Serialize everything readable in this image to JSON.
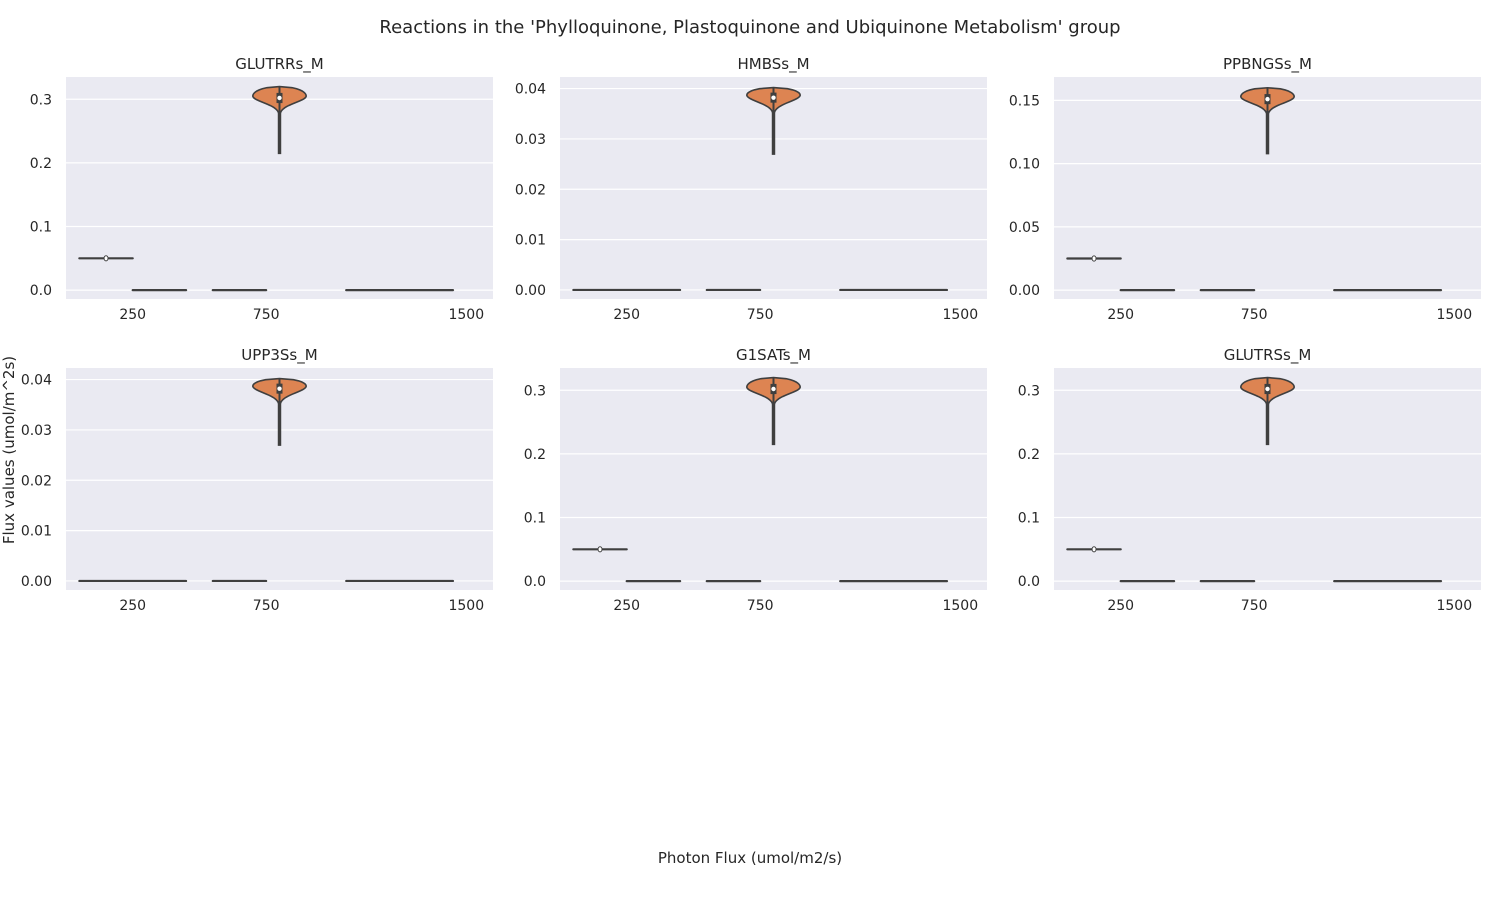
{
  "figure": {
    "title": "Reactions in the 'Phylloquinone, Plastoquinone and Ubiquinone Metabolism' group",
    "xlabel": "Photon Flux (umol/m2/s)",
    "ylabel": "Flux values (umol/m^2s)",
    "background": "#eaeaf2",
    "grid_color": "#ffffff",
    "violin_fill": "#dd8452",
    "line_color": "#3f3f3f"
  },
  "chart_data": [
    {
      "type": "violin",
      "title": "GLUTRRs_M",
      "xlim": [
        0,
        1600
      ],
      "xticks": [
        250,
        750,
        1500
      ],
      "ylim": [
        -0.014,
        0.335
      ],
      "yticks": [
        0.0,
        0.1,
        0.2,
        0.3
      ],
      "ytick_labels": [
        "0.0",
        "0.1",
        "0.2",
        "0.3"
      ],
      "flat_segments": [
        {
          "from": 50,
          "to": 250,
          "value": 0.05,
          "has_median": true
        },
        {
          "from": 250,
          "to": 450,
          "value": 0.0
        },
        {
          "from": 550,
          "to": 750,
          "value": 0.0
        },
        {
          "from": 1050,
          "to": 1450,
          "value": 0.0
        }
      ],
      "violins": [
        {
          "x": 800,
          "min": 0.215,
          "max": 0.32,
          "median": 0.302,
          "q1": 0.294,
          "q3": 0.31,
          "mode": 0.305,
          "half_width": 100
        }
      ]
    },
    {
      "type": "violin",
      "title": "HMBSs_M",
      "xlim": [
        0,
        1600
      ],
      "xticks": [
        250,
        750,
        1500
      ],
      "ylim": [
        -0.0018,
        0.0423
      ],
      "yticks": [
        0.0,
        0.01,
        0.02,
        0.03,
        0.04
      ],
      "ytick_labels": [
        "0.00",
        "0.01",
        "0.02",
        "0.03",
        "0.04"
      ],
      "flat_segments": [
        {
          "from": 50,
          "to": 450,
          "value": 0.0
        },
        {
          "from": 550,
          "to": 750,
          "value": 0.0
        },
        {
          "from": 1050,
          "to": 1450,
          "value": 0.0
        }
      ],
      "violins": [
        {
          "x": 800,
          "min": 0.027,
          "max": 0.0402,
          "median": 0.0382,
          "q1": 0.0372,
          "q3": 0.0392,
          "mode": 0.0387,
          "half_width": 100
        }
      ]
    },
    {
      "type": "violin",
      "title": "PPBNGSs_M",
      "xlim": [
        0,
        1600
      ],
      "xticks": [
        250,
        750,
        1500
      ],
      "ylim": [
        -0.007,
        0.1685
      ],
      "yticks": [
        0.0,
        0.05,
        0.1,
        0.15
      ],
      "ytick_labels": [
        "0.00",
        "0.05",
        "0.10",
        "0.15"
      ],
      "flat_segments": [
        {
          "from": 50,
          "to": 250,
          "value": 0.025,
          "has_median": true
        },
        {
          "from": 250,
          "to": 450,
          "value": 0.0
        },
        {
          "from": 550,
          "to": 750,
          "value": 0.0
        },
        {
          "from": 1050,
          "to": 1450,
          "value": 0.0
        }
      ],
      "violins": [
        {
          "x": 800,
          "min": 0.108,
          "max": 0.16,
          "median": 0.151,
          "q1": 0.147,
          "q3": 0.155,
          "mode": 0.153,
          "half_width": 100
        }
      ]
    },
    {
      "type": "violin",
      "title": "UPP3Ss_M",
      "xlim": [
        0,
        1600
      ],
      "xticks": [
        250,
        750,
        1500
      ],
      "ylim": [
        -0.0018,
        0.0423
      ],
      "yticks": [
        0.0,
        0.01,
        0.02,
        0.03,
        0.04
      ],
      "ytick_labels": [
        "0.00",
        "0.01",
        "0.02",
        "0.03",
        "0.04"
      ],
      "flat_segments": [
        {
          "from": 50,
          "to": 450,
          "value": 0.0
        },
        {
          "from": 550,
          "to": 750,
          "value": 0.0
        },
        {
          "from": 1050,
          "to": 1450,
          "value": 0.0
        }
      ],
      "violins": [
        {
          "x": 800,
          "min": 0.027,
          "max": 0.0402,
          "median": 0.0382,
          "q1": 0.0372,
          "q3": 0.0392,
          "mode": 0.0387,
          "half_width": 100
        }
      ]
    },
    {
      "type": "violin",
      "title": "G1SATs_M",
      "xlim": [
        0,
        1600
      ],
      "xticks": [
        250,
        750,
        1500
      ],
      "ylim": [
        -0.014,
        0.335
      ],
      "yticks": [
        0.0,
        0.1,
        0.2,
        0.3
      ],
      "ytick_labels": [
        "0.0",
        "0.1",
        "0.2",
        "0.3"
      ],
      "flat_segments": [
        {
          "from": 50,
          "to": 250,
          "value": 0.05,
          "has_median": true
        },
        {
          "from": 250,
          "to": 450,
          "value": 0.0
        },
        {
          "from": 550,
          "to": 750,
          "value": 0.0
        },
        {
          "from": 1050,
          "to": 1450,
          "value": 0.0
        }
      ],
      "violins": [
        {
          "x": 800,
          "min": 0.215,
          "max": 0.32,
          "median": 0.302,
          "q1": 0.294,
          "q3": 0.31,
          "mode": 0.305,
          "half_width": 100
        }
      ]
    },
    {
      "type": "violin",
      "title": "GLUTRSs_M",
      "xlim": [
        0,
        1600
      ],
      "xticks": [
        250,
        750,
        1500
      ],
      "ylim": [
        -0.014,
        0.335
      ],
      "yticks": [
        0.0,
        0.1,
        0.2,
        0.3
      ],
      "ytick_labels": [
        "0.0",
        "0.1",
        "0.2",
        "0.3"
      ],
      "flat_segments": [
        {
          "from": 50,
          "to": 250,
          "value": 0.05,
          "has_median": true
        },
        {
          "from": 250,
          "to": 450,
          "value": 0.0
        },
        {
          "from": 550,
          "to": 750,
          "value": 0.0
        },
        {
          "from": 1050,
          "to": 1450,
          "value": 0.0
        }
      ],
      "violins": [
        {
          "x": 800,
          "min": 0.215,
          "max": 0.32,
          "median": 0.302,
          "q1": 0.294,
          "q3": 0.31,
          "mode": 0.305,
          "half_width": 100
        }
      ]
    }
  ]
}
